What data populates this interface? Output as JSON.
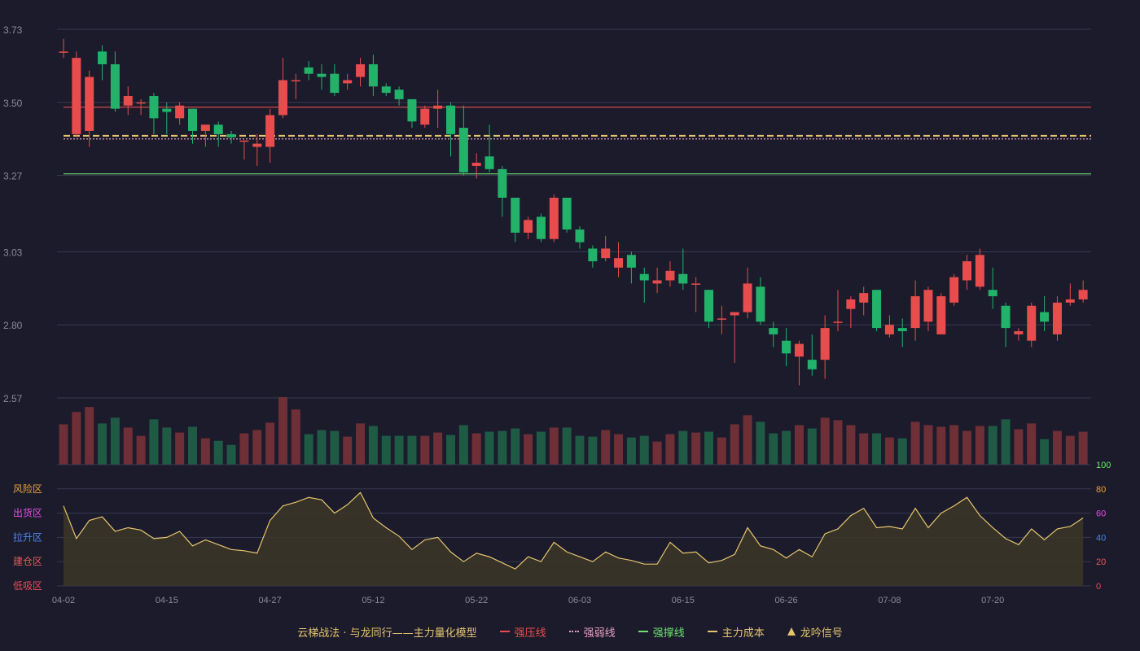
{
  "chart_data": [
    {
      "type": "candlestick",
      "price_axis": {
        "ticks": [
          "3.73",
          "3.50",
          "3.27",
          "3.03",
          "2.80",
          "2.57"
        ],
        "ylim": [
          2.57,
          3.73
        ]
      },
      "x_ticks": [
        "04-02",
        "04-15",
        "04-27",
        "05-12",
        "05-22",
        "06-03",
        "06-15",
        "06-26",
        "07-08",
        "07-20"
      ],
      "x_tick_index": [
        0,
        8,
        16,
        24,
        32,
        40,
        48,
        56,
        64,
        72
      ],
      "candles": [
        [
          3.66,
          3.66,
          3.7,
          3.64
        ],
        [
          3.4,
          3.64,
          3.66,
          3.39
        ],
        [
          3.41,
          3.58,
          3.6,
          3.36
        ],
        [
          3.66,
          3.62,
          3.68,
          3.57
        ],
        [
          3.62,
          3.48,
          3.66,
          3.47
        ],
        [
          3.49,
          3.52,
          3.55,
          3.46
        ],
        [
          3.5,
          3.5,
          3.51,
          3.46
        ],
        [
          3.52,
          3.45,
          3.53,
          3.4
        ],
        [
          3.48,
          3.47,
          3.5,
          3.4
        ],
        [
          3.45,
          3.49,
          3.5,
          3.43
        ],
        [
          3.48,
          3.41,
          3.48,
          3.37
        ],
        [
          3.41,
          3.43,
          3.43,
          3.36
        ],
        [
          3.43,
          3.4,
          3.44,
          3.36
        ],
        [
          3.4,
          3.39,
          3.41,
          3.37
        ],
        [
          3.38,
          3.38,
          3.38,
          3.32
        ],
        [
          3.36,
          3.37,
          3.4,
          3.3
        ],
        [
          3.36,
          3.46,
          3.48,
          3.31
        ],
        [
          3.46,
          3.57,
          3.64,
          3.45
        ],
        [
          3.57,
          3.57,
          3.59,
          3.51
        ],
        [
          3.61,
          3.59,
          3.63,
          3.57
        ],
        [
          3.59,
          3.58,
          3.62,
          3.54
        ],
        [
          3.59,
          3.53,
          3.62,
          3.52
        ],
        [
          3.56,
          3.57,
          3.59,
          3.54
        ],
        [
          3.58,
          3.62,
          3.64,
          3.55
        ],
        [
          3.62,
          3.55,
          3.65,
          3.52
        ],
        [
          3.55,
          3.53,
          3.56,
          3.52
        ],
        [
          3.54,
          3.51,
          3.55,
          3.49
        ],
        [
          3.51,
          3.44,
          3.51,
          3.42
        ],
        [
          3.43,
          3.48,
          3.49,
          3.42
        ],
        [
          3.48,
          3.49,
          3.54,
          3.42
        ],
        [
          3.49,
          3.4,
          3.5,
          3.33
        ],
        [
          3.42,
          3.28,
          3.49,
          3.27
        ],
        [
          3.3,
          3.31,
          3.34,
          3.26
        ],
        [
          3.33,
          3.29,
          3.43,
          3.28
        ],
        [
          3.29,
          3.2,
          3.3,
          3.14
        ],
        [
          3.2,
          3.09,
          3.2,
          3.06
        ],
        [
          3.09,
          3.13,
          3.14,
          3.07
        ],
        [
          3.14,
          3.07,
          3.15,
          3.06
        ],
        [
          3.07,
          3.2,
          3.21,
          3.06
        ],
        [
          3.2,
          3.1,
          3.2,
          3.09
        ],
        [
          3.1,
          3.06,
          3.11,
          3.04
        ],
        [
          3.04,
          3.0,
          3.05,
          2.98
        ],
        [
          3.01,
          3.04,
          3.08,
          3.0
        ],
        [
          2.98,
          3.01,
          3.06,
          2.95
        ],
        [
          3.02,
          2.98,
          3.03,
          2.93
        ],
        [
          2.96,
          2.94,
          2.98,
          2.87
        ],
        [
          2.93,
          2.94,
          2.98,
          2.9
        ],
        [
          2.94,
          2.97,
          3.0,
          2.92
        ],
        [
          2.96,
          2.93,
          3.04,
          2.91
        ],
        [
          2.93,
          2.93,
          2.95,
          2.84
        ],
        [
          2.91,
          2.81,
          2.91,
          2.79
        ],
        [
          2.82,
          2.82,
          2.86,
          2.77
        ],
        [
          2.83,
          2.84,
          2.84,
          2.68
        ],
        [
          2.84,
          2.93,
          2.98,
          2.82
        ],
        [
          2.92,
          2.81,
          2.95,
          2.8
        ],
        [
          2.79,
          2.77,
          2.81,
          2.73
        ],
        [
          2.75,
          2.71,
          2.79,
          2.67
        ],
        [
          2.7,
          2.74,
          2.75,
          2.61
        ],
        [
          2.69,
          2.66,
          2.77,
          2.64
        ],
        [
          2.69,
          2.79,
          2.83,
          2.63
        ],
        [
          2.81,
          2.81,
          2.91,
          2.78
        ],
        [
          2.85,
          2.88,
          2.89,
          2.79
        ],
        [
          2.87,
          2.9,
          2.92,
          2.83
        ],
        [
          2.91,
          2.79,
          2.91,
          2.78
        ],
        [
          2.77,
          2.8,
          2.83,
          2.76
        ],
        [
          2.79,
          2.78,
          2.82,
          2.73
        ],
        [
          2.79,
          2.89,
          2.94,
          2.75
        ],
        [
          2.81,
          2.91,
          2.92,
          2.78
        ],
        [
          2.77,
          2.89,
          2.9,
          2.77
        ],
        [
          2.87,
          2.95,
          2.96,
          2.86
        ],
        [
          2.94,
          3.0,
          3.02,
          2.91
        ],
        [
          2.92,
          3.02,
          3.04,
          2.91
        ],
        [
          2.91,
          2.89,
          2.98,
          2.85
        ],
        [
          2.86,
          2.79,
          2.87,
          2.73
        ],
        [
          2.77,
          2.78,
          2.79,
          2.75
        ],
        [
          2.75,
          2.86,
          2.87,
          2.73
        ],
        [
          2.84,
          2.81,
          2.89,
          2.78
        ],
        [
          2.77,
          2.87,
          2.89,
          2.75
        ],
        [
          2.87,
          2.88,
          2.93,
          2.86
        ],
        [
          2.88,
          2.91,
          2.94,
          2.87
        ]
      ],
      "candle_format": [
        "open",
        "close",
        "high",
        "low"
      ],
      "volumes": [
        49,
        64,
        70,
        50,
        57,
        45,
        35,
        55,
        45,
        39,
        46,
        32,
        29,
        24,
        38,
        42,
        51,
        82,
        67,
        37,
        42,
        41,
        34,
        50,
        47,
        35,
        35,
        35,
        35,
        39,
        36,
        48,
        38,
        40,
        41,
        44,
        37,
        40,
        45,
        45,
        35,
        34,
        42,
        37,
        33,
        35,
        28,
        37,
        41,
        39,
        40,
        33,
        49,
        60,
        52,
        38,
        41,
        48,
        44,
        57,
        54,
        48,
        38,
        38,
        33,
        32,
        52,
        48,
        46,
        48,
        41,
        47,
        47,
        55,
        43,
        50,
        31,
        41,
        35,
        40
      ],
      "reference_lines": [
        {
          "name": "强压线",
          "value": 3.485,
          "color": "#e84c4c",
          "style": "solid"
        },
        {
          "name": "主力成本",
          "value": 3.395,
          "color": "#e5c46d",
          "style": "dashed"
        },
        {
          "name": "强弱线",
          "value": 3.385,
          "color": "#e8a0c0",
          "style": "dotted"
        },
        {
          "name": "强撑线",
          "value": 3.275,
          "color": "#70e070",
          "style": "solid"
        }
      ],
      "colors": {
        "up": "#e84c4c",
        "down": "#22b26a",
        "up_vol": "#6e2f36",
        "down_vol": "#1f5a45",
        "grid": "#3a3a50"
      }
    },
    {
      "type": "area",
      "left_labels": [
        {
          "text": "风险区",
          "color": "#e8a23a"
        },
        {
          "text": "出货区",
          "color": "#e34fe0"
        },
        {
          "text": "拉升区",
          "color": "#4f86e8"
        },
        {
          "text": "建仓区",
          "color": "#e85a5a"
        },
        {
          "text": "低吸区",
          "color": "#e84d5a"
        }
      ],
      "right_ticks": [
        {
          "text": "100",
          "color": "#66e866"
        },
        {
          "text": "80",
          "color": "#e8a23a"
        },
        {
          "text": "60",
          "color": "#e34fe0"
        },
        {
          "text": "40",
          "color": "#4f86e8"
        },
        {
          "text": "20",
          "color": "#e85a5a"
        },
        {
          "text": "0",
          "color": "#e84d5a"
        }
      ],
      "ylim": [
        0,
        100
      ],
      "values": [
        66,
        39,
        54,
        57,
        45,
        48,
        46,
        39,
        40,
        45,
        33,
        38,
        34,
        30,
        29,
        27,
        54,
        66,
        69,
        73,
        71,
        60,
        67,
        77,
        56,
        48,
        41,
        30,
        38,
        40,
        28,
        20,
        27,
        24,
        19,
        14,
        24,
        20,
        36,
        28,
        24,
        20,
        28,
        23,
        21,
        18,
        18,
        36,
        27,
        28,
        19,
        21,
        26,
        48,
        33,
        30,
        23,
        30,
        24,
        43,
        47,
        58,
        64,
        48,
        49,
        47,
        64,
        48,
        60,
        66,
        73,
        58,
        48,
        39,
        34,
        47,
        38,
        47,
        49,
        56
      ],
      "line_color": "#e5c46d",
      "fill_color": "#3b3628"
    }
  ],
  "legend": {
    "title": "云梯战法 · 与龙同行——主力量化模型",
    "items": [
      {
        "label": "强压线",
        "color": "#e84c4c",
        "style": "solid"
      },
      {
        "label": "强弱线",
        "color": "#e8a0c0",
        "style": "dotted"
      },
      {
        "label": "强撑线",
        "color": "#70e070",
        "style": "solid"
      },
      {
        "label": "主力成本",
        "color": "#e5c46d",
        "style": "dashed"
      },
      {
        "label": "龙吟信号",
        "color": "#e5c46d",
        "style": "triangle"
      }
    ]
  }
}
